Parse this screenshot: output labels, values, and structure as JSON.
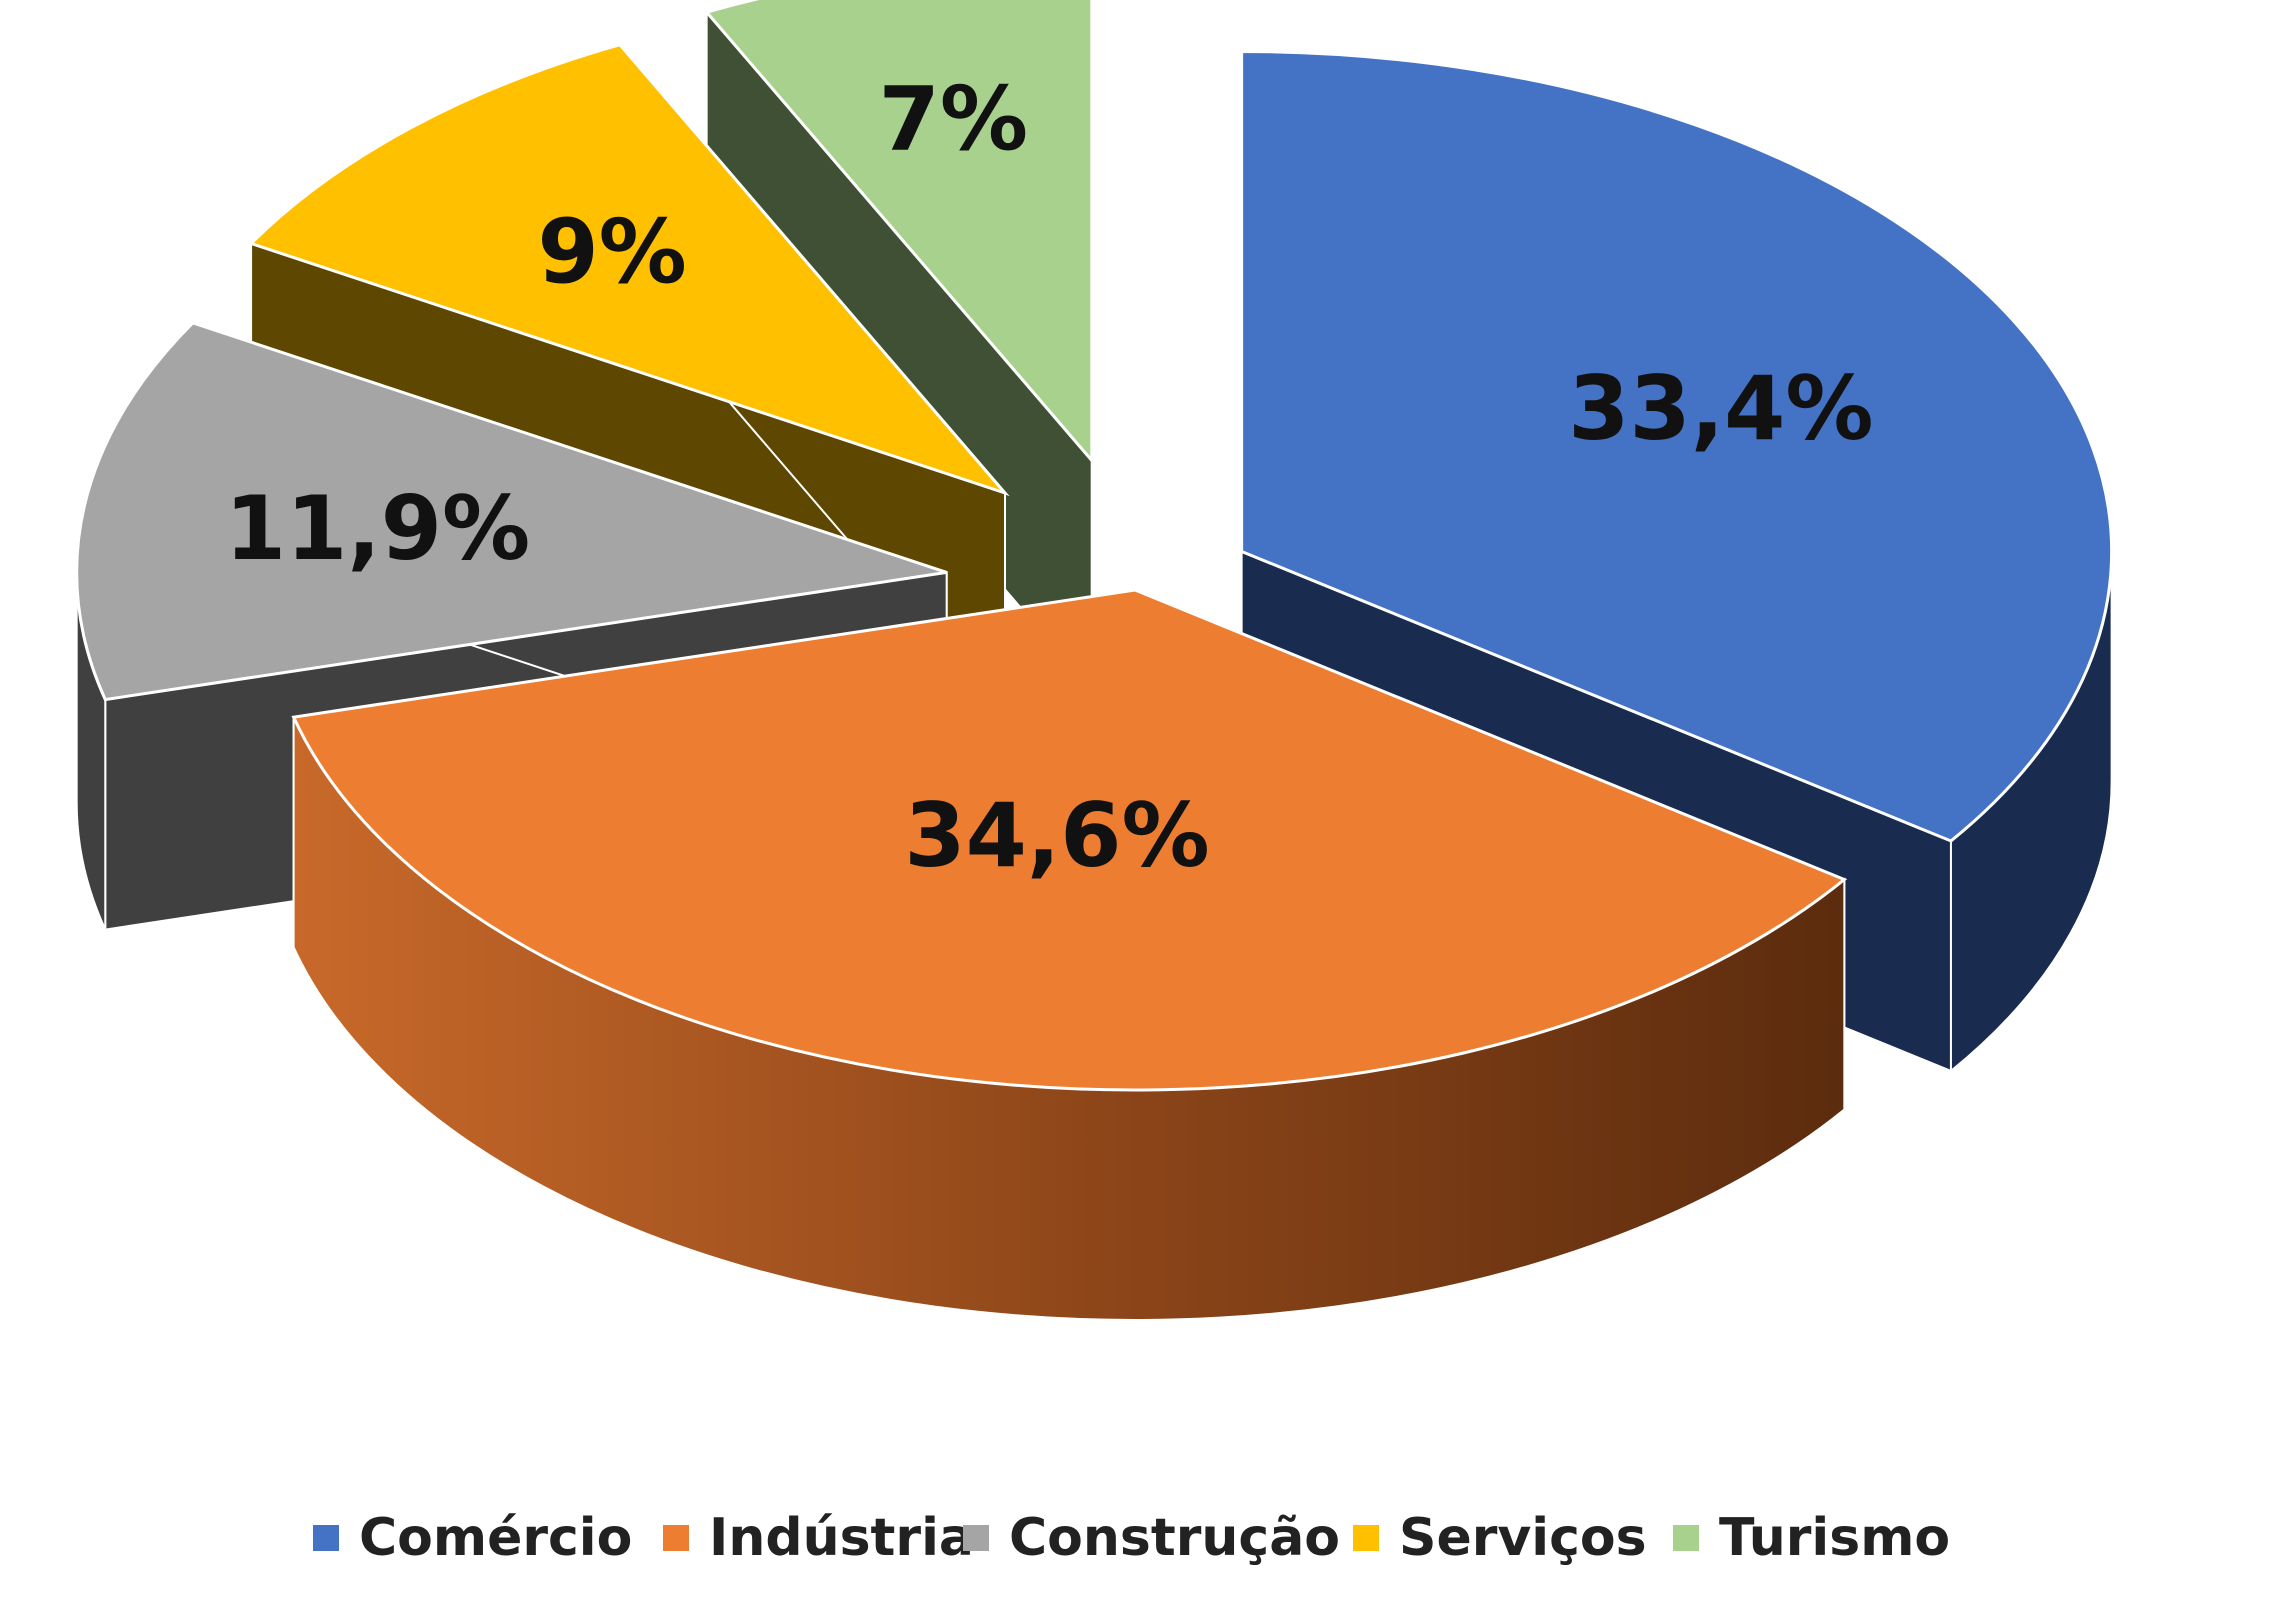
{
  "chart_data": {
    "type": "pie",
    "style": "3d-exploded",
    "categories": [
      "Comércio",
      "Indústria",
      "Construção",
      "Serviços",
      "Turismo"
    ],
    "values": [
      33.4,
      34.6,
      11.9,
      9,
      7
    ],
    "labels": [
      "33,4%",
      "34,6%",
      "11,9%",
      "9%",
      "7%"
    ],
    "colors": [
      "#4472C4",
      "#ED7D31",
      "#A5A5A5",
      "#FFC000",
      "#A9D18E"
    ],
    "side_colors": [
      "#1A2B50",
      "#7A3D12",
      "#404040",
      "#5E4700",
      "#3F5035"
    ],
    "legend_position": "bottom"
  }
}
